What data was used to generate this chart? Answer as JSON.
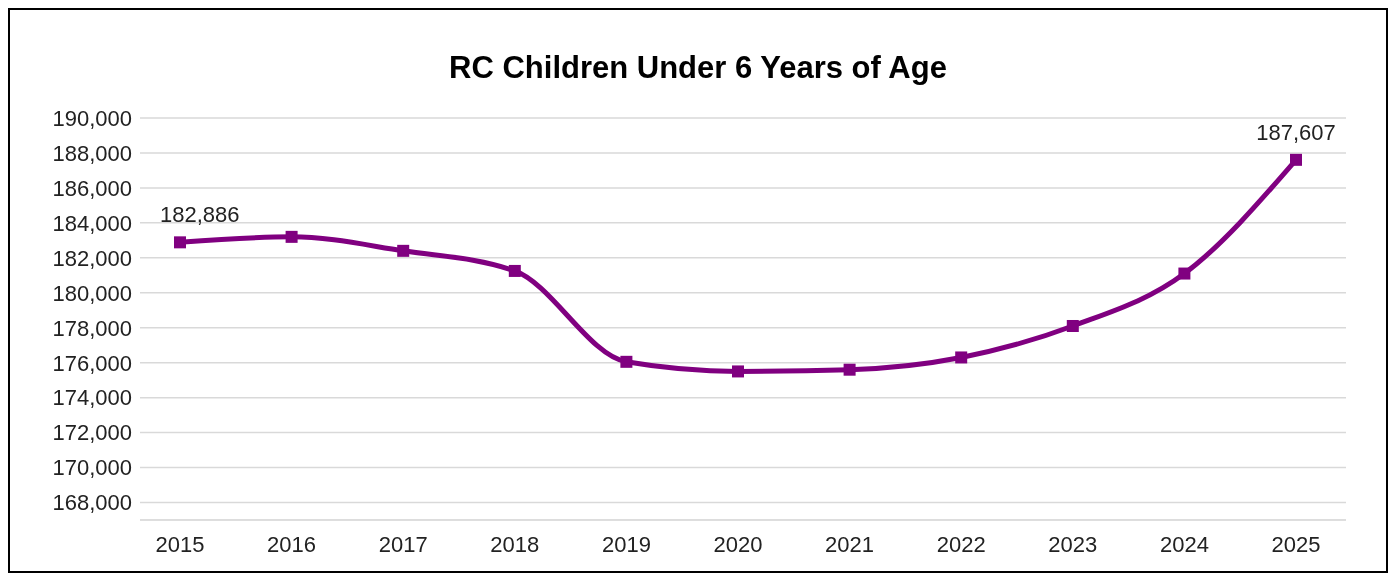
{
  "chart_data": {
    "type": "line",
    "title": "RC Children Under 6 Years of Age",
    "categories": [
      "2015",
      "2016",
      "2017",
      "2018",
      "2019",
      "2020",
      "2021",
      "2022",
      "2023",
      "2024",
      "2025"
    ],
    "series": [
      {
        "color": "#800080",
        "values": [
          182886,
          183200,
          182400,
          181250,
          176050,
          175500,
          175600,
          176300,
          178100,
          181100,
          187607
        ],
        "value_labels": [
          "182,886",
          null,
          null,
          null,
          null,
          null,
          null,
          null,
          null,
          null,
          "187,607"
        ]
      }
    ],
    "ylim": [
      167000,
      190000
    ],
    "yticks": [
      {
        "value": 168000,
        "label": "168,000"
      },
      {
        "value": 170000,
        "label": "170,000"
      },
      {
        "value": 172000,
        "label": "172,000"
      },
      {
        "value": 174000,
        "label": "174,000"
      },
      {
        "value": 176000,
        "label": "176,000"
      },
      {
        "value": 178000,
        "label": "178,000"
      },
      {
        "value": 180000,
        "label": "180,000"
      },
      {
        "value": 182000,
        "label": "182,000"
      },
      {
        "value": 184000,
        "label": "184,000"
      },
      {
        "value": 186000,
        "label": "186,000"
      },
      {
        "value": 188000,
        "label": "188,000"
      },
      {
        "value": 190000,
        "label": "190,000"
      }
    ],
    "grid": "y",
    "marker": "square",
    "line_style": "solid",
    "legend": false
  }
}
